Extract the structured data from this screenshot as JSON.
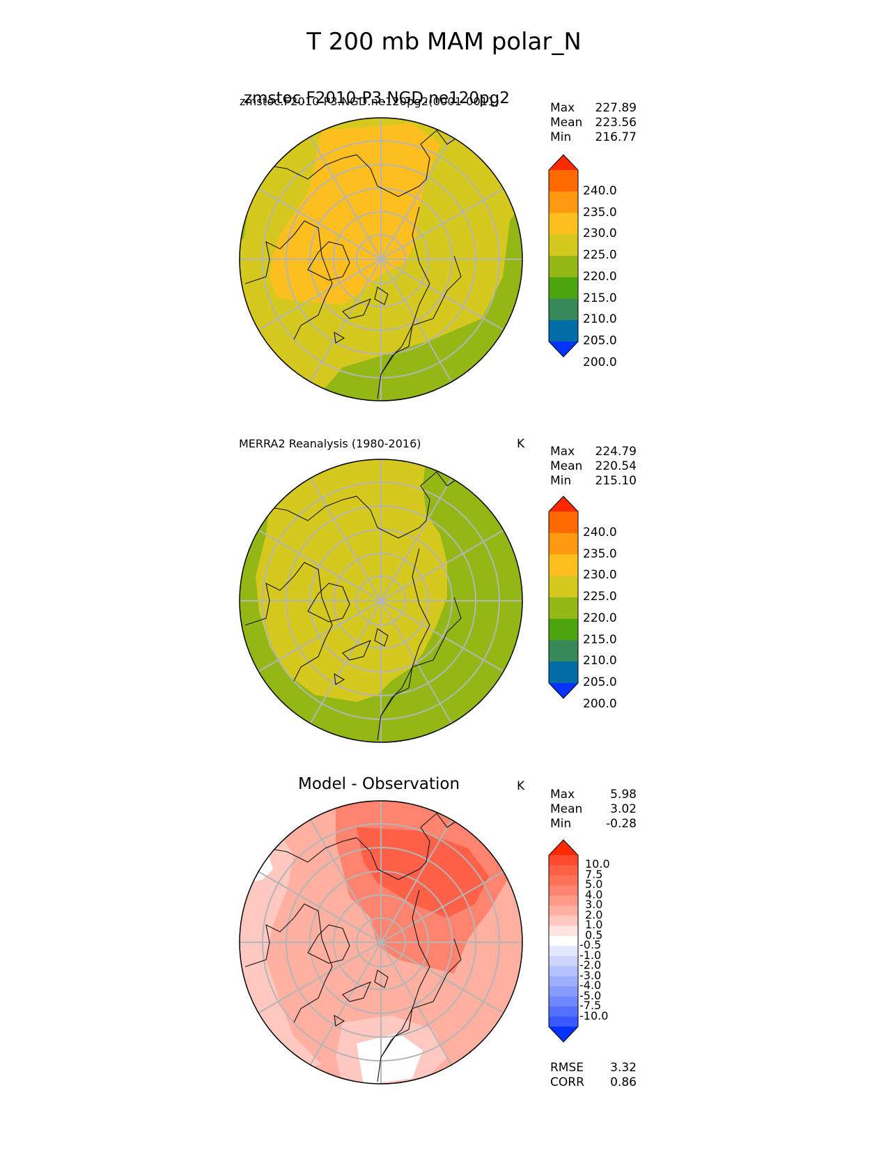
{
  "figure": {
    "title": "T 200 mb MAM polar_N"
  },
  "panels": [
    {
      "id": "model",
      "title_left": "zmstoc.F2010-P3.NGD.ne120pg2",
      "title_overlay": "zmstoc.F2010-P3.NGD.ne120pg2(0001-0011)",
      "units": "",
      "stats": [
        {
          "label": "Max",
          "value": "227.89"
        },
        {
          "label": "Mean",
          "value": "223.56"
        },
        {
          "label": "Min",
          "value": "216.77"
        }
      ],
      "colorbar": {
        "labels": [
          "240.0",
          "235.0",
          "230.0",
          "225.0",
          "220.0",
          "215.0",
          "210.0",
          "205.0",
          "200.0"
        ],
        "colors": [
          "#ff2a00",
          "#ff6a00",
          "#ff9a10",
          "#fdbf1f",
          "#d5c81e",
          "#93b816",
          "#4ca50e",
          "#388a5a",
          "#016ca6",
          "#0433ff"
        ]
      }
    },
    {
      "id": "obs",
      "title_left": "MERRA2 Reanalysis (1980-2016)",
      "units": "K",
      "stats": [
        {
          "label": "Max",
          "value": "224.79"
        },
        {
          "label": "Mean",
          "value": "220.54"
        },
        {
          "label": "Min",
          "value": "215.10"
        }
      ],
      "colorbar": {
        "labels": [
          "240.0",
          "235.0",
          "230.0",
          "225.0",
          "220.0",
          "215.0",
          "210.0",
          "205.0",
          "200.0"
        ],
        "colors": [
          "#ff2a00",
          "#ff6a00",
          "#ff9a10",
          "#fdbf1f",
          "#d5c81e",
          "#93b816",
          "#4ca50e",
          "#388a5a",
          "#016ca6",
          "#0433ff"
        ]
      }
    },
    {
      "id": "diff",
      "title_center": "Model - Observation",
      "units": "K",
      "stats": [
        {
          "label": "Max",
          "value": "5.98"
        },
        {
          "label": "Mean",
          "value": "3.02"
        },
        {
          "label": "Min",
          "value": "-0.28"
        }
      ],
      "extra_stats": [
        {
          "label": "RMSE",
          "value": "3.32"
        },
        {
          "label": "CORR",
          "value": "0.86"
        }
      ],
      "colorbar": {
        "labels": [
          "10.0",
          "7.5",
          "5.0",
          "4.0",
          "3.0",
          "2.0",
          "1.0",
          "0.5",
          "-0.5",
          "-1.0",
          "-2.0",
          "-3.0",
          "-4.0",
          "-5.0",
          "-7.5",
          "-10.0"
        ],
        "colors": [
          "#ff2a00",
          "#ff4a30",
          "#ff6048",
          "#ff7258",
          "#ff8470",
          "#ff9a88",
          "#ffb0a0",
          "#ffc8c0",
          "#ffe4e0",
          "#ffffff",
          "#e4e8ff",
          "#cdd5ff",
          "#b6c2ff",
          "#9fafff",
          "#889cff",
          "#6f87ff",
          "#5470ff",
          "#3a59ff",
          "#0433ff"
        ]
      }
    }
  ]
}
